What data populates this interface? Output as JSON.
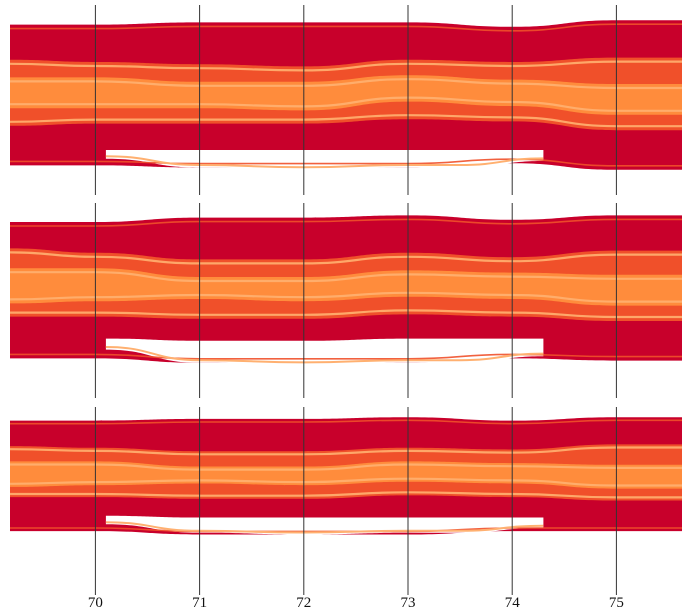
{
  "chart_data": {
    "type": "area",
    "title": "",
    "xlabel": "",
    "ylabel": "",
    "x_ticks": [
      "70",
      "71",
      "72",
      "73",
      "74",
      "75"
    ],
    "xlim": [
      69.18,
      75.63
    ],
    "grid": "vertical lines at each tick",
    "colors": {
      "outer": "#c8002b",
      "middle": "#f0502a",
      "inner": "#ff8c3c",
      "highlight": "#ffb070",
      "gridline": "#333333"
    },
    "panels": [
      {
        "name": "",
        "x": [
          69.18,
          70,
          71,
          72,
          73,
          74,
          75,
          75.63
        ],
        "bands": [
          {
            "name": "",
            "top": [
              3.2,
              3.2,
              3.3,
              3.3,
              3.3,
              3.1,
              3.4,
              3.4
            ],
            "bottom": [
              -3.2,
              -3.2,
              -3.3,
              -3.3,
              -3.3,
              -3.1,
              -3.4,
              -3.4
            ]
          },
          {
            "name": "",
            "top": [
              1.6,
              1.5,
              1.4,
              1.3,
              1.6,
              1.5,
              1.7,
              1.7
            ],
            "bottom": [
              -1.4,
              -1.3,
              -1.3,
              -1.3,
              -1.1,
              -1.2,
              -1.6,
              -1.6
            ]
          },
          {
            "name": "",
            "top": [
              0.8,
              0.8,
              0.6,
              0.6,
              0.9,
              0.7,
              0.5,
              0.5
            ],
            "bottom": [
              -0.6,
              -0.6,
              -0.6,
              -0.7,
              -0.3,
              -0.5,
              -0.9,
              -0.9
            ]
          }
        ],
        "gap": {
          "x": [
            70.1,
            71,
            72,
            73,
            73.5,
            74.3
          ],
          "top": [
            -2.5,
            -2.5,
            -2.5,
            -2.5,
            -2.5,
            -2.5
          ],
          "bottom": [
            -2.9,
            -3.3,
            -3.4,
            -3.3,
            -3.3,
            -3.0
          ]
        }
      },
      {
        "name": "",
        "x": [
          69.18,
          70,
          71,
          72,
          73,
          74,
          75,
          75.63
        ],
        "bands": [
          {
            "name": "",
            "top": [
              3.0,
              3.0,
              3.2,
              3.2,
              3.3,
              3.1,
              3.3,
              3.3
            ],
            "bottom": [
              -3.2,
              -3.2,
              -3.4,
              -3.4,
              -3.4,
              -3.2,
              -3.3,
              -3.3
            ]
          },
          {
            "name": "",
            "top": [
              1.8,
              1.6,
              1.3,
              1.3,
              1.6,
              1.4,
              1.7,
              1.7
            ],
            "bottom": [
              -1.3,
              -1.3,
              -1.4,
              -1.4,
              -1.2,
              -1.3,
              -1.5,
              -1.5
            ]
          },
          {
            "name": "",
            "top": [
              0.9,
              0.9,
              0.5,
              0.5,
              0.8,
              0.7,
              0.6,
              0.6
            ],
            "bottom": [
              -0.7,
              -0.6,
              -0.5,
              -0.6,
              -0.4,
              -0.5,
              -0.8,
              -0.8
            ]
          }
        ],
        "gap": {
          "x": [
            70.1,
            71,
            72,
            73,
            73.5,
            74.3
          ],
          "top": [
            -2.3,
            -2.4,
            -2.4,
            -2.3,
            -2.3,
            -2.3
          ],
          "bottom": [
            -2.8,
            -3.4,
            -3.5,
            -3.4,
            -3.4,
            -3.1
          ]
        }
      },
      {
        "name": "",
        "x": [
          69.18,
          70,
          71,
          72,
          73,
          74,
          75,
          75.63
        ],
        "bands": [
          {
            "name": "",
            "top": [
              3.2,
              3.2,
              3.3,
              3.3,
              3.4,
              3.2,
              3.4,
              3.4
            ],
            "bottom": [
              -3.3,
              -3.3,
              -3.5,
              -3.5,
              -3.5,
              -3.3,
              -3.3,
              -3.3
            ]
          },
          {
            "name": "",
            "top": [
              1.7,
              1.6,
              1.4,
              1.4,
              1.6,
              1.5,
              1.8,
              1.8
            ],
            "bottom": [
              -1.3,
              -1.3,
              -1.4,
              -1.4,
              -1.2,
              -1.3,
              -1.5,
              -1.5
            ]
          },
          {
            "name": "",
            "top": [
              0.8,
              0.8,
              0.5,
              0.5,
              0.8,
              0.7,
              0.6,
              0.6
            ],
            "bottom": [
              -0.7,
              -0.6,
              -0.5,
              -0.6,
              -0.4,
              -0.5,
              -0.8,
              -0.8
            ]
          }
        ],
        "gap": {
          "x": [
            70.1,
            71,
            72,
            73,
            73.5,
            74.3
          ],
          "top": [
            -2.4,
            -2.5,
            -2.5,
            -2.5,
            -2.5,
            -2.5
          ],
          "bottom": [
            -2.9,
            -3.4,
            -3.5,
            -3.4,
            -3.4,
            -3.1
          ]
        }
      }
    ]
  }
}
